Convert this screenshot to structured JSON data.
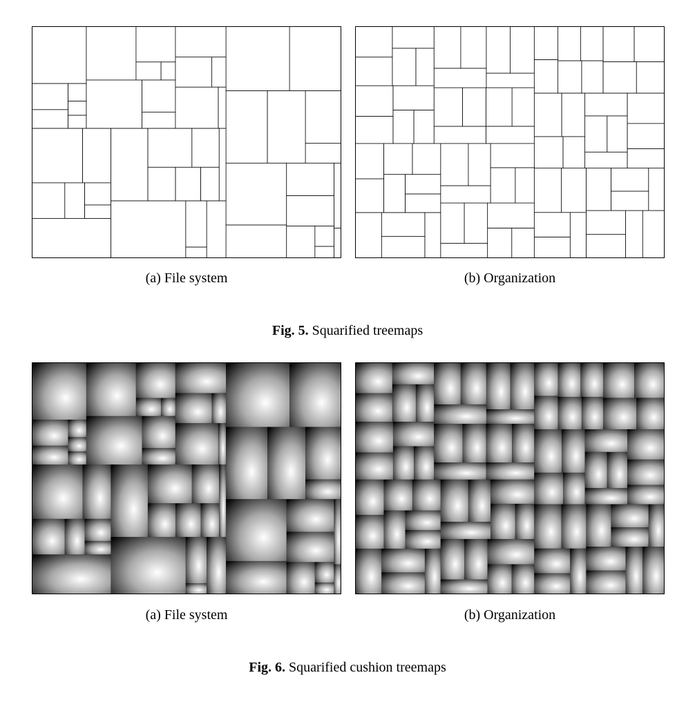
{
  "figure5": {
    "label": "Fig. 5.",
    "caption": "Squarified treemaps",
    "panels": [
      {
        "subcaption": "(a) File system",
        "style": "outline"
      },
      {
        "subcaption": "(b) Organization",
        "style": "outline"
      }
    ]
  },
  "figure6": {
    "label": "Fig. 6.",
    "caption": "Squarified cushion treemaps",
    "panels": [
      {
        "subcaption": "(a) File system",
        "style": "cushion"
      },
      {
        "subcaption": "(b) Organization",
        "style": "cushion"
      }
    ]
  },
  "colors": {
    "outline_stroke": "#000000",
    "cushion_dark": "#000000",
    "cushion_light": "#ffffff",
    "background": "#ffffff"
  }
}
